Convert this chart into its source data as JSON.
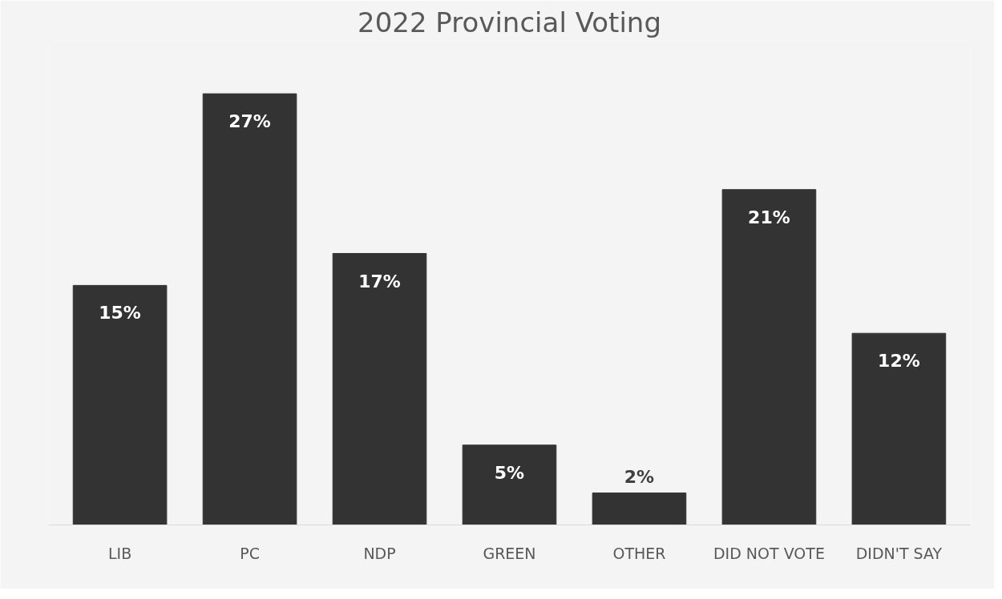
{
  "chart_data": {
    "type": "bar",
    "title": "2022 Provincial Voting",
    "categories": [
      "LIB",
      "PC",
      "NDP",
      "GREEN",
      "OTHER",
      "DID NOT VOTE",
      "DIDN'T SAY"
    ],
    "values": [
      15,
      27,
      17,
      5,
      2,
      21,
      12
    ],
    "value_labels": [
      "15%",
      "27%",
      "17%",
      "5%",
      "2%",
      "21%",
      "12%"
    ],
    "color": "#333333",
    "grid": false
  }
}
